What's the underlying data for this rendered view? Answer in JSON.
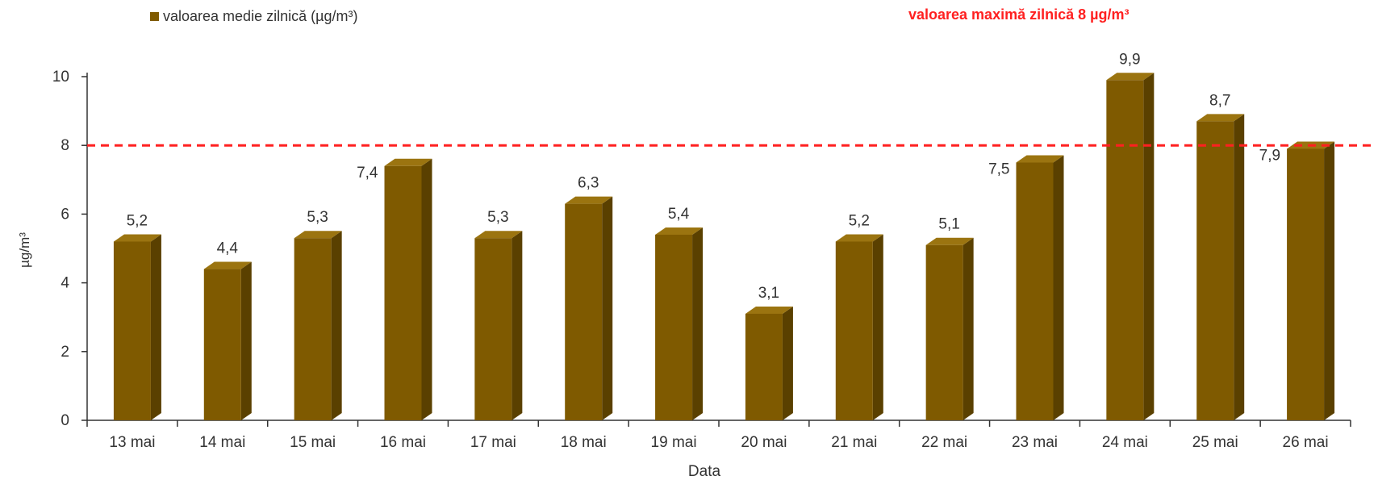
{
  "chart_data": {
    "type": "bar",
    "title": "",
    "xlabel": "Data",
    "ylabel": "µg/m³",
    "ylim": [
      0,
      10
    ],
    "yticks": [
      0,
      2,
      4,
      6,
      8,
      10
    ],
    "grid": false,
    "legend_position": "top-left",
    "categories": [
      "13 mai",
      "14 mai",
      "15 mai",
      "16 mai",
      "17 mai",
      "18 mai",
      "19 mai",
      "20 mai",
      "21 mai",
      "22 mai",
      "23 mai",
      "24 mai",
      "25 mai",
      "26 mai"
    ],
    "series": [
      {
        "name": "valoarea medie zilnică (µg/m³)",
        "values": [
          5.2,
          4.4,
          5.3,
          7.4,
          5.3,
          6.3,
          5.4,
          3.1,
          5.2,
          5.1,
          7.5,
          9.9,
          8.7,
          7.9
        ],
        "data_labels": [
          "5,2",
          "4,4",
          "5,3",
          "7,4",
          "5,3",
          "6,3",
          "5,4",
          "3,1",
          "5,2",
          "5,1",
          "7,5",
          "9,9",
          "8,7",
          "7,9"
        ],
        "color": "#7f5a00"
      }
    ],
    "threshold": {
      "value": 8,
      "label": "valoarea maximă zilnică 8 µg/m³",
      "color": "#ff2020",
      "style": "dashed"
    }
  }
}
